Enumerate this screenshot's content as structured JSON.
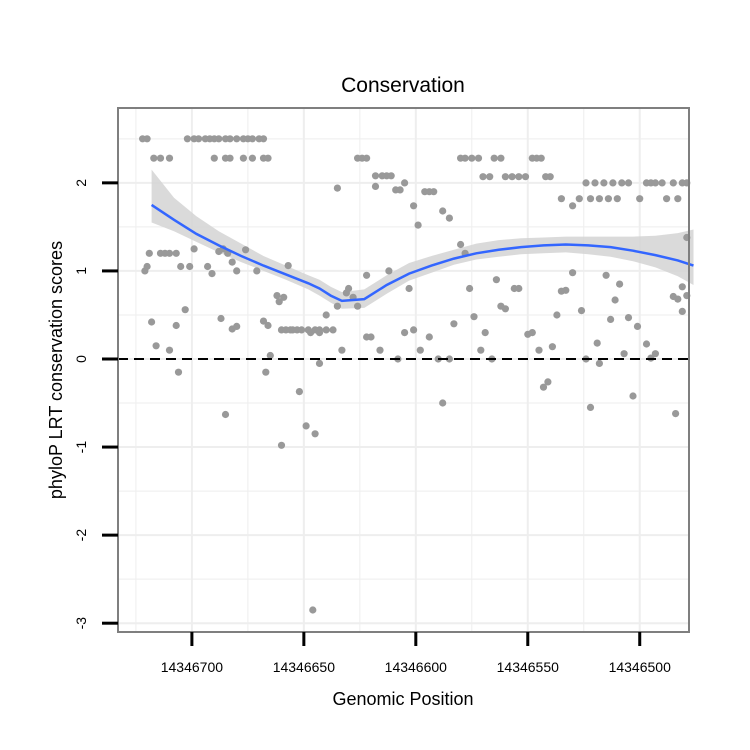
{
  "chart_data": {
    "type": "scatter",
    "title": "Conservation",
    "xlabel": "Genomic Position",
    "ylabel": "phyloP LRT conservation scores",
    "xlim": [
      14346733,
      14346478
    ],
    "ylim": [
      -3.1,
      2.85
    ],
    "x_reversed": true,
    "x_ticks": [
      14346700,
      14346650,
      14346600,
      14346550,
      14346500
    ],
    "x_tick_labels": [
      "14346700",
      "14346650",
      "14346600",
      "14346550",
      "14346500"
    ],
    "y_ticks": [
      -3,
      -2,
      -1,
      0,
      1,
      2
    ],
    "y_tick_labels": [
      "-3",
      "-2",
      "-1",
      "0",
      "1",
      "2"
    ],
    "reference_line": {
      "y": 0,
      "style": "dashed"
    },
    "colors": {
      "points": "#999999",
      "smooth_line": "#3366ff",
      "confidence_band": "#d3d3d3",
      "grid": "#eeeeee",
      "frame": "#7f7f7f"
    },
    "series": [
      {
        "name": "phyloP scores",
        "type": "scatter",
        "points": [
          [
            14346722,
            2.5
          ],
          [
            14346720,
            2.5
          ],
          [
            14346717,
            2.28
          ],
          [
            14346714,
            2.28
          ],
          [
            14346710,
            2.28
          ],
          [
            14346702,
            2.5
          ],
          [
            14346699,
            2.5
          ],
          [
            14346697,
            2.5
          ],
          [
            14346694,
            2.5
          ],
          [
            14346692,
            2.5
          ],
          [
            14346690,
            2.5
          ],
          [
            14346688,
            2.5
          ],
          [
            14346685,
            2.5
          ],
          [
            14346683,
            2.5
          ],
          [
            14346680,
            2.5
          ],
          [
            14346677,
            2.5
          ],
          [
            14346675,
            2.5
          ],
          [
            14346673,
            2.5
          ],
          [
            14346670,
            2.5
          ],
          [
            14346668,
            2.5
          ],
          [
            14346690,
            2.28
          ],
          [
            14346685,
            2.28
          ],
          [
            14346683,
            2.28
          ],
          [
            14346677,
            2.28
          ],
          [
            14346673,
            2.28
          ],
          [
            14346668,
            2.28
          ],
          [
            14346666,
            2.28
          ],
          [
            14346721,
            1.0
          ],
          [
            14346720,
            1.05
          ],
          [
            14346719,
            1.2
          ],
          [
            14346714,
            1.2
          ],
          [
            14346712,
            1.2
          ],
          [
            14346710,
            1.2
          ],
          [
            14346707,
            1.2
          ],
          [
            14346705,
            1.05
          ],
          [
            14346701,
            1.05
          ],
          [
            14346699,
            1.25
          ],
          [
            14346693,
            1.05
          ],
          [
            14346691,
            0.97
          ],
          [
            14346688,
            1.22
          ],
          [
            14346686,
            1.25
          ],
          [
            14346684,
            1.2
          ],
          [
            14346682,
            1.1
          ],
          [
            14346680,
            1.0
          ],
          [
            14346676,
            1.24
          ],
          [
            14346671,
            1.0
          ],
          [
            14346718,
            0.42
          ],
          [
            14346716,
            0.15
          ],
          [
            14346710,
            0.1
          ],
          [
            14346707,
            0.38
          ],
          [
            14346706,
            -0.15
          ],
          [
            14346703,
            0.56
          ],
          [
            14346687,
            0.46
          ],
          [
            14346685,
            -0.63
          ],
          [
            14346682,
            0.34
          ],
          [
            14346680,
            0.37
          ],
          [
            14346668,
            0.43
          ],
          [
            14346667,
            -0.15
          ],
          [
            14346666,
            0.38
          ],
          [
            14346665,
            0.04
          ],
          [
            14346662,
            0.72
          ],
          [
            14346661,
            0.65
          ],
          [
            14346660,
            0.33
          ],
          [
            14346658,
            0.33
          ],
          [
            14346656,
            0.33
          ],
          [
            14346655,
            0.33
          ],
          [
            14346653,
            0.33
          ],
          [
            14346651,
            0.33
          ],
          [
            14346648,
            0.33
          ],
          [
            14346645,
            0.33
          ],
          [
            14346643,
            0.33
          ],
          [
            14346640,
            0.33
          ],
          [
            14346637,
            0.33
          ],
          [
            14346643,
            0.3
          ],
          [
            14346647,
            0.3
          ],
          [
            14346652,
            -0.37
          ],
          [
            14346649,
            -0.76
          ],
          [
            14346645,
            -0.85
          ],
          [
            14346643,
            -0.05
          ],
          [
            14346640,
            0.5
          ],
          [
            14346635,
            1.94
          ],
          [
            14346635,
            0.6
          ],
          [
            14346633,
            0.1
          ],
          [
            14346631,
            0.75
          ],
          [
            14346630,
            0.8
          ],
          [
            14346628,
            0.7
          ],
          [
            14346626,
            0.6
          ],
          [
            14346622,
            0.95
          ],
          [
            14346622,
            0.25
          ],
          [
            14346618,
            1.96
          ],
          [
            14346620,
            0.25
          ],
          [
            14346616,
            0.1
          ],
          [
            14346612,
            1.0
          ],
          [
            14346608,
            0.0
          ],
          [
            14346605,
            0.3
          ],
          [
            14346603,
            0.8
          ],
          [
            14346601,
            0.33
          ],
          [
            14346598,
            0.1
          ],
          [
            14346594,
            0.25
          ],
          [
            14346590,
            0.0
          ],
          [
            14346588,
            -0.5
          ],
          [
            14346585,
            0.0
          ],
          [
            14346583,
            0.4
          ],
          [
            14346580,
            1.3
          ],
          [
            14346578,
            1.2
          ],
          [
            14346576,
            0.8
          ],
          [
            14346574,
            0.48
          ],
          [
            14346571,
            0.1
          ],
          [
            14346569,
            0.3
          ],
          [
            14346566,
            0.0
          ],
          [
            14346564,
            0.9
          ],
          [
            14346562,
            0.6
          ],
          [
            14346560,
            0.57
          ],
          [
            14346556,
            0.8
          ],
          [
            14346554,
            0.8
          ],
          [
            14346550,
            0.28
          ],
          [
            14346548,
            0.3
          ],
          [
            14346545,
            0.1
          ],
          [
            14346543,
            -0.32
          ],
          [
            14346541,
            -0.26
          ],
          [
            14346539,
            0.14
          ],
          [
            14346537,
            0.5
          ],
          [
            14346535,
            0.77
          ],
          [
            14346533,
            0.78
          ],
          [
            14346530,
            0.98
          ],
          [
            14346526,
            0.55
          ],
          [
            14346524,
            0.0
          ],
          [
            14346522,
            -0.55
          ],
          [
            14346519,
            0.18
          ],
          [
            14346518,
            -0.05
          ],
          [
            14346515,
            0.95
          ],
          [
            14346513,
            0.45
          ],
          [
            14346511,
            0.67
          ],
          [
            14346509,
            0.85
          ],
          [
            14346507,
            0.06
          ],
          [
            14346505,
            0.47
          ],
          [
            14346503,
            -0.42
          ],
          [
            14346501,
            0.37
          ],
          [
            14346497,
            0.17
          ],
          [
            14346495,
            0.01
          ],
          [
            14346493,
            0.06
          ],
          [
            14346485,
            0.71
          ],
          [
            14346483,
            0.68
          ],
          [
            14346481,
            0.82
          ],
          [
            14346479,
            0.72
          ],
          [
            14346626,
            2.28
          ],
          [
            14346624,
            2.28
          ],
          [
            14346622,
            2.28
          ],
          [
            14346618,
            2.08
          ],
          [
            14346615,
            2.08
          ],
          [
            14346613,
            2.08
          ],
          [
            14346611,
            2.08
          ],
          [
            14346609,
            1.92
          ],
          [
            14346607,
            1.92
          ],
          [
            14346605,
            2.0
          ],
          [
            14346601,
            1.74
          ],
          [
            14346599,
            1.52
          ],
          [
            14346596,
            1.9
          ],
          [
            14346594,
            1.9
          ],
          [
            14346592,
            1.9
          ],
          [
            14346588,
            1.68
          ],
          [
            14346585,
            1.6
          ],
          [
            14346580,
            2.28
          ],
          [
            14346578,
            2.28
          ],
          [
            14346575,
            2.28
          ],
          [
            14346572,
            2.28
          ],
          [
            14346570,
            2.07
          ],
          [
            14346567,
            2.07
          ],
          [
            14346565,
            2.28
          ],
          [
            14346562,
            2.28
          ],
          [
            14346560,
            2.07
          ],
          [
            14346557,
            2.07
          ],
          [
            14346554,
            2.07
          ],
          [
            14346551,
            2.07
          ],
          [
            14346548,
            2.28
          ],
          [
            14346546,
            2.28
          ],
          [
            14346544,
            2.28
          ],
          [
            14346542,
            2.07
          ],
          [
            14346540,
            2.07
          ],
          [
            14346535,
            1.82
          ],
          [
            14346530,
            1.74
          ],
          [
            14346527,
            1.82
          ],
          [
            14346524,
            2.0
          ],
          [
            14346522,
            1.82
          ],
          [
            14346520,
            2.0
          ],
          [
            14346518,
            1.82
          ],
          [
            14346516,
            2.0
          ],
          [
            14346514,
            1.82
          ],
          [
            14346512,
            2.0
          ],
          [
            14346510,
            1.82
          ],
          [
            14346508,
            2.0
          ],
          [
            14346505,
            2.0
          ],
          [
            14346500,
            1.82
          ],
          [
            14346497,
            2.0
          ],
          [
            14346495,
            2.0
          ],
          [
            14346493,
            2.0
          ],
          [
            14346490,
            2.0
          ],
          [
            14346488,
            1.82
          ],
          [
            14346485,
            2.0
          ],
          [
            14346483,
            1.82
          ],
          [
            14346481,
            2.0
          ],
          [
            14346479,
            2.0
          ],
          [
            14346479,
            1.38
          ],
          [
            14346481,
            0.54
          ],
          [
            14346484,
            -0.62
          ],
          [
            14346646,
            -2.85
          ],
          [
            14346659,
            0.7
          ],
          [
            14346660,
            -0.98
          ],
          [
            14346657,
            1.06
          ]
        ]
      },
      {
        "name": "loess fit",
        "type": "line",
        "x": [
          14346718,
          14346708,
          14346698,
          14346688,
          14346678,
          14346668,
          14346658,
          14346648,
          14346643,
          14346638,
          14346633,
          14346623,
          14346613,
          14346603,
          14346593,
          14346583,
          14346573,
          14346563,
          14346553,
          14346543,
          14346533,
          14346523,
          14346513,
          14346503,
          14346493,
          14346483,
          14346476
        ],
        "y": [
          1.75,
          1.58,
          1.42,
          1.29,
          1.17,
          1.06,
          0.96,
          0.86,
          0.8,
          0.72,
          0.66,
          0.68,
          0.84,
          0.97,
          1.06,
          1.14,
          1.2,
          1.24,
          1.27,
          1.29,
          1.3,
          1.29,
          1.27,
          1.23,
          1.18,
          1.12,
          1.06
        ],
        "band_lower": [
          1.55,
          1.45,
          1.33,
          1.21,
          1.1,
          1.0,
          0.9,
          0.79,
          0.72,
          0.64,
          0.57,
          0.58,
          0.74,
          0.89,
          0.98,
          1.07,
          1.13,
          1.16,
          1.19,
          1.2,
          1.21,
          1.19,
          1.16,
          1.11,
          1.04,
          0.94,
          0.84
        ],
        "band_upper": [
          2.15,
          1.83,
          1.62,
          1.45,
          1.31,
          1.17,
          1.06,
          0.95,
          0.9,
          0.82,
          0.76,
          0.79,
          0.95,
          1.09,
          1.17,
          1.24,
          1.31,
          1.35,
          1.37,
          1.38,
          1.39,
          1.39,
          1.39,
          1.39,
          1.4,
          1.43,
          1.47
        ]
      }
    ]
  }
}
